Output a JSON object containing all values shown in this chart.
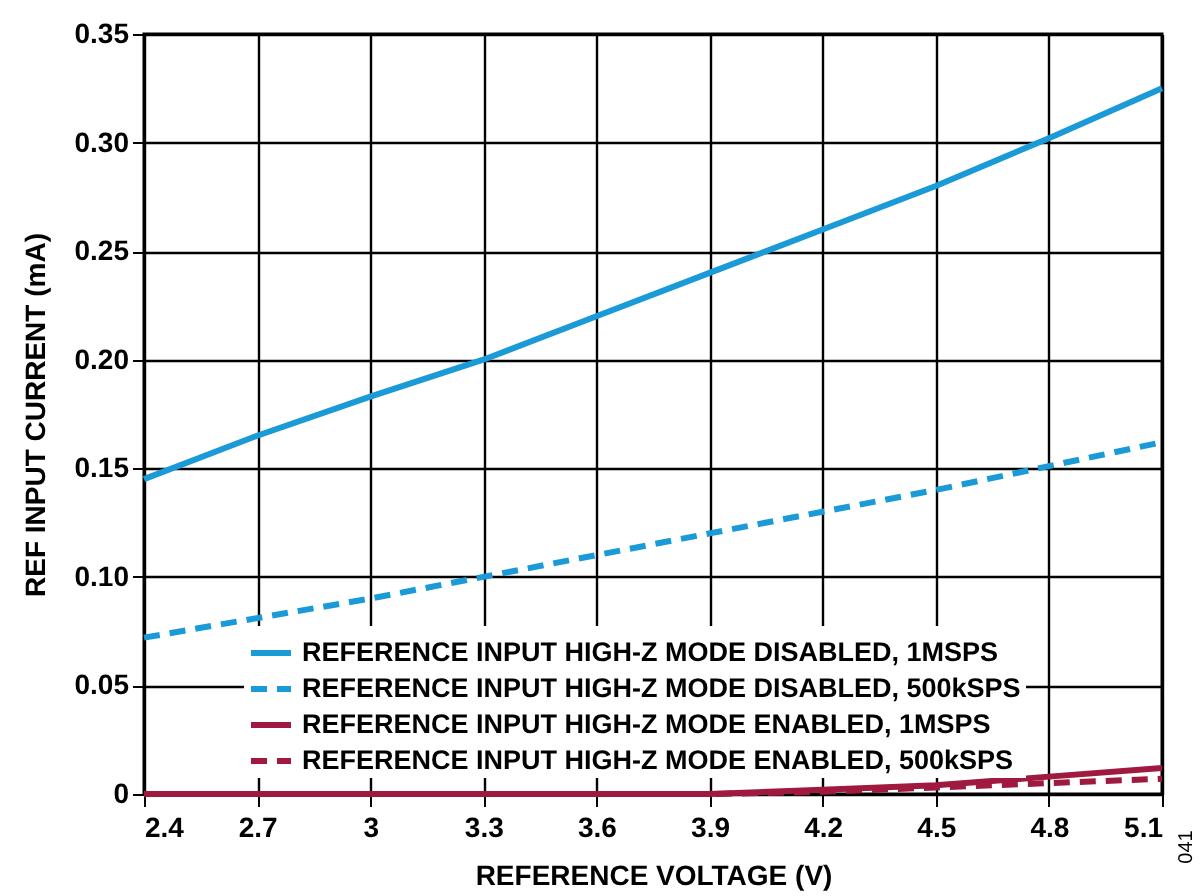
{
  "chart_data": {
    "type": "line",
    "xlabel": "REFERENCE VOLTAGE (V)",
    "ylabel": "REF INPUT CURRENT (mA)",
    "x": [
      2.4,
      2.7,
      3.0,
      3.3,
      3.6,
      3.9,
      4.2,
      4.5,
      4.8,
      5.1
    ],
    "xlim": [
      2.4,
      5.1
    ],
    "xticks": [
      2.4,
      2.7,
      {
        "value": 3,
        "label": "3"
      },
      3.3,
      3.6,
      3.9,
      4.2,
      4.5,
      4.8,
      5.1
    ],
    "ylim": [
      0,
      0.35
    ],
    "yticks": [
      {
        "value": 0,
        "label": "0"
      },
      0.05,
      {
        "value": 0.1,
        "label": "0.10"
      },
      0.15,
      {
        "value": 0.2,
        "label": "0.20"
      },
      0.25,
      {
        "value": 0.3,
        "label": "0.30"
      },
      0.35
    ],
    "grid": true,
    "legend": "bottom right",
    "marker": "none",
    "annotations": [
      "041"
    ],
    "series": [
      {
        "name": "REFERENCE INPUT HIGH-Z MODE DISABLED, 1MSPS",
        "color": "#1a9ad6",
        "line_style": "solid",
        "values": [
          0.145,
          0.165,
          0.183,
          0.2,
          0.22,
          0.24,
          0.26,
          0.28,
          0.302,
          0.325
        ]
      },
      {
        "name": "REFERENCE INPUT HIGH-Z MODE DISABLED, 500kSPS",
        "color": "#1a9ad6",
        "line_style": "dashed",
        "values": [
          0.072,
          0.081,
          0.09,
          0.1,
          0.11,
          0.12,
          0.13,
          0.14,
          0.151,
          0.162
        ]
      },
      {
        "name": "REFERENCE INPUT HIGH-Z MODE ENABLED, 1MSPS",
        "color": "#a0193f",
        "line_style": "solid",
        "values": [
          0,
          0,
          0,
          0,
          0,
          0,
          0.002,
          0.004,
          0.008,
          0.012
        ]
      },
      {
        "name": "REFERENCE INPUT HIGH-Z MODE ENABLED, 500kSPS",
        "color": "#a0193f",
        "line_style": "dashed",
        "values": [
          0,
          0,
          0,
          0,
          0,
          0,
          0.001,
          0.003,
          0.005,
          0.007
        ]
      }
    ]
  }
}
